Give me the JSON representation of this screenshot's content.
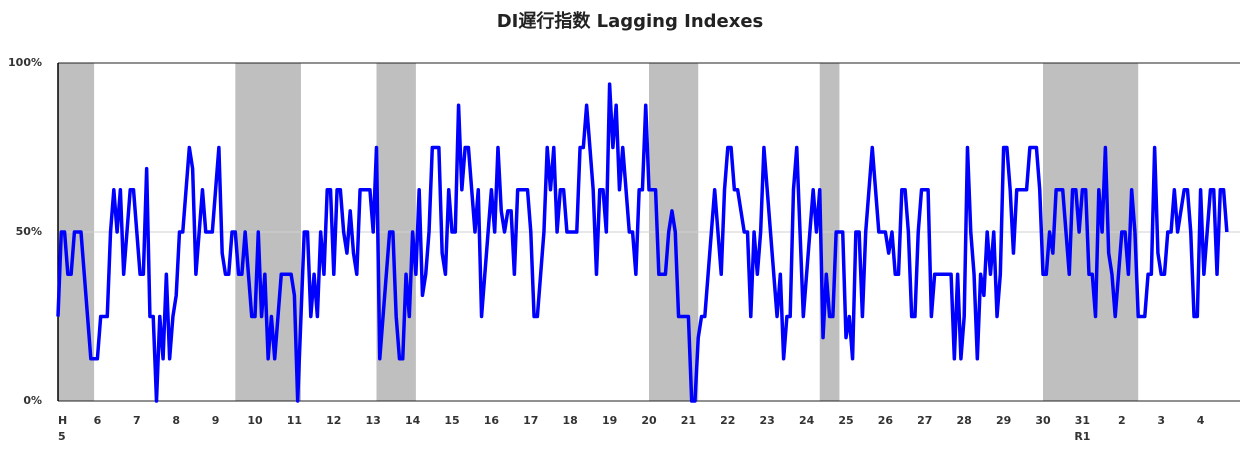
{
  "chart_data": {
    "type": "line",
    "title": "DI遅行指数 Lagging Indexes",
    "color": "#0000ff",
    "shade_color": "#bfbfbf",
    "values": [
      25,
      50,
      50,
      37.5,
      37.5,
      50,
      50,
      50,
      37.5,
      25,
      12.5,
      12.5,
      12.5,
      25,
      25,
      25,
      50,
      62.5,
      50,
      62.5,
      37.5,
      50,
      62.5,
      62.5,
      50,
      37.5,
      37.5,
      68.75,
      25,
      25,
      0,
      25,
      12.5,
      37.5,
      12.5,
      25,
      31.25,
      50,
      50,
      62.5,
      75,
      68.75,
      37.5,
      50,
      62.5,
      50,
      50,
      50,
      62.5,
      75,
      43.75,
      37.5,
      37.5,
      50,
      50,
      37.5,
      37.5,
      50,
      37.5,
      25,
      25,
      50,
      25,
      37.5,
      12.5,
      25,
      12.5,
      25,
      37.5,
      37.5,
      37.5,
      37.5,
      31.25,
      0,
      25,
      50,
      50,
      25,
      37.5,
      25,
      50,
      37.5,
      62.5,
      62.5,
      37.5,
      62.5,
      62.5,
      50,
      43.75,
      56.25,
      43.75,
      37.5,
      62.5,
      62.5,
      62.5,
      62.5,
      50,
      75,
      12.5,
      25,
      37.5,
      50,
      50,
      25,
      12.5,
      12.5,
      37.5,
      25,
      50,
      37.5,
      62.5,
      31.25,
      37.5,
      50,
      75,
      75,
      75,
      43.75,
      37.5,
      62.5,
      50,
      50,
      87.5,
      62.5,
      75,
      75,
      62.5,
      50,
      62.5,
      25,
      37.5,
      50,
      62.5,
      50,
      75,
      56.25,
      50,
      56.25,
      56.25,
      37.5,
      62.5,
      62.5,
      62.5,
      62.5,
      50,
      25,
      25,
      37.5,
      50,
      75,
      62.5,
      75,
      50,
      62.5,
      62.5,
      50,
      50,
      50,
      50,
      75,
      75,
      87.5,
      75,
      62.5,
      37.5,
      62.5,
      62.5,
      50,
      93.75,
      75,
      87.5,
      62.5,
      75,
      62.5,
      50,
      50,
      37.5,
      62.5,
      62.5,
      87.5,
      62.5,
      62.5,
      62.5,
      37.5,
      37.5,
      37.5,
      50,
      56.25,
      50,
      25,
      25,
      25,
      25,
      0,
      0,
      18.75,
      25,
      25,
      37.5,
      50,
      62.5,
      50,
      37.5,
      62.5,
      75,
      75,
      62.5,
      62.5,
      56.25,
      50,
      50,
      25,
      50,
      37.5,
      50,
      75,
      62.5,
      50,
      37.5,
      25,
      37.5,
      12.5,
      25,
      25,
      62.5,
      75,
      50,
      25,
      37.5,
      50,
      62.5,
      50,
      62.5,
      18.75,
      37.5,
      25,
      25,
      50,
      50,
      50,
      18.75,
      25,
      12.5,
      50,
      50,
      25,
      50,
      62.5,
      75,
      62.5,
      50,
      50,
      50,
      43.75,
      50,
      37.5,
      37.5,
      62.5,
      62.5,
      50,
      25,
      25,
      50,
      62.5,
      62.5,
      62.5,
      25,
      37.5,
      37.5,
      37.5,
      37.5,
      37.5,
      37.5,
      12.5,
      37.5,
      12.5,
      25,
      75,
      50,
      37.5,
      12.5,
      37.5,
      31.25,
      50,
      37.5,
      50,
      25,
      37.5,
      75,
      75,
      62.5,
      43.75,
      62.5,
      62.5,
      62.5,
      62.5,
      75,
      75,
      75,
      62.5,
      37.5,
      37.5,
      50,
      43.75,
      62.5,
      62.5,
      62.5,
      50,
      37.5,
      62.5,
      62.5,
      50,
      62.5,
      62.5,
      37.5,
      37.5,
      25,
      62.5,
      50,
      75,
      43.75,
      37.5,
      25,
      37.5,
      50,
      50,
      37.5,
      62.5,
      50,
      25,
      25,
      25,
      37.5,
      37.5,
      75,
      43.75,
      37.5,
      37.5,
      50,
      50,
      62.5,
      50,
      56.25,
      62.5,
      62.5,
      50,
      25,
      25,
      62.5,
      37.5,
      50,
      62.5,
      62.5,
      37.5,
      62.5,
      62.5,
      50
    ],
    "shaded_periods": [
      [
        0,
        11
      ],
      [
        54,
        74
      ],
      [
        97,
        109
      ],
      [
        180,
        195
      ],
      [
        232,
        238
      ],
      [
        300,
        329
      ]
    ],
    "xlim": [
      0,
      360
    ],
    "xticks": [
      {
        "value": 0,
        "label": "H"
      },
      {
        "value": 12,
        "label": "6"
      },
      {
        "value": 24,
        "label": "7"
      },
      {
        "value": 36,
        "label": "8"
      },
      {
        "value": 48,
        "label": "9"
      },
      {
        "value": 60,
        "label": "10"
      },
      {
        "value": 72,
        "label": "11"
      },
      {
        "value": 84,
        "label": "12"
      },
      {
        "value": 96,
        "label": "13"
      },
      {
        "value": 108,
        "label": "14"
      },
      {
        "value": 120,
        "label": "15"
      },
      {
        "value": 132,
        "label": "16"
      },
      {
        "value": 144,
        "label": "17"
      },
      {
        "value": 156,
        "label": "18"
      },
      {
        "value": 168,
        "label": "19"
      },
      {
        "value": 180,
        "label": "20"
      },
      {
        "value": 192,
        "label": "21"
      },
      {
        "value": 204,
        "label": "22"
      },
      {
        "value": 216,
        "label": "23"
      },
      {
        "value": 228,
        "label": "24"
      },
      {
        "value": 240,
        "label": "25"
      },
      {
        "value": 252,
        "label": "26"
      },
      {
        "value": 264,
        "label": "27"
      },
      {
        "value": 276,
        "label": "28"
      },
      {
        "value": 288,
        "label": "29"
      },
      {
        "value": 300,
        "label": "30"
      },
      {
        "value": 312,
        "label": "31"
      },
      {
        "value": 324,
        "label": "2"
      },
      {
        "value": 336,
        "label": "3"
      },
      {
        "value": 348,
        "label": "4"
      }
    ],
    "xticks_line2": [
      {
        "value": 0,
        "label": "5"
      },
      {
        "value": 312,
        "label": "R1"
      }
    ],
    "ylim": [
      0,
      100
    ],
    "yticks": [
      {
        "value": 0,
        "label": "0%"
      },
      {
        "value": 50,
        "label": "50%"
      },
      {
        "value": 100,
        "label": "100%"
      }
    ],
    "grid": true
  }
}
